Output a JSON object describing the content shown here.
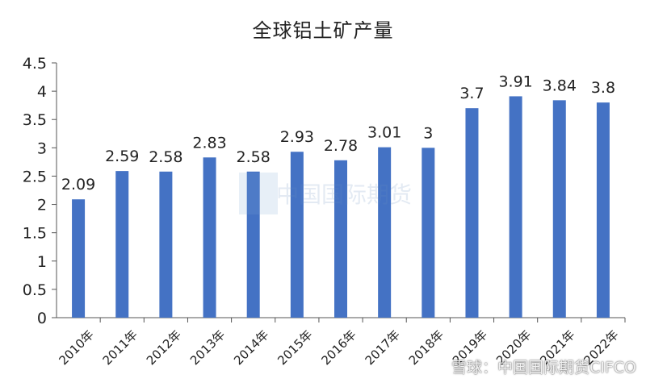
{
  "chart_data": {
    "type": "bar",
    "title": "全球铝土矿产量",
    "categories": [
      "2010年",
      "2011年",
      "2012年",
      "2013年",
      "2014年",
      "2015年",
      "2016年",
      "2017年",
      "2018年",
      "2019年",
      "2020年",
      "2021年",
      "2022年"
    ],
    "values": [
      2.09,
      2.59,
      2.58,
      2.83,
      2.58,
      2.93,
      2.78,
      3.01,
      3,
      3.7,
      3.91,
      3.84,
      3.8
    ],
    "data_labels": [
      "2.09",
      "2.59",
      "2.58",
      "2.83",
      "2.58",
      "2.93",
      "2.78",
      "3.01",
      "3",
      "3.7",
      "3.91",
      "3.84",
      "3.8"
    ],
    "y_ticks": [
      "0",
      "0.5",
      "1",
      "1.5",
      "2",
      "2.5",
      "3",
      "3.5",
      "4",
      "4.5"
    ],
    "ylim": [
      0,
      4.5
    ],
    "grid": false,
    "bar_color": "#4472C4"
  },
  "watermark": {
    "center_text": "中国国际期货",
    "bottom_text": "雪球：中国国际期货CIFCO"
  }
}
